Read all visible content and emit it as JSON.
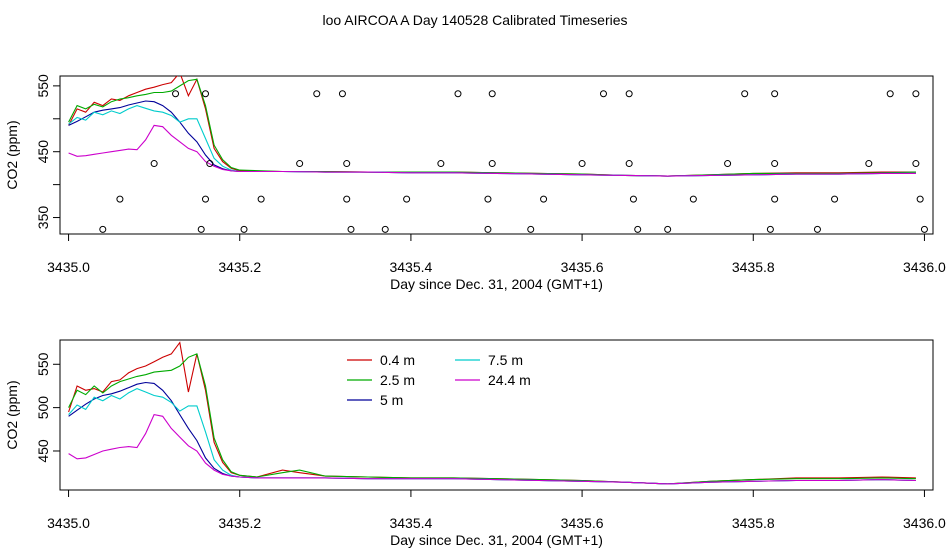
{
  "page_title": "loo AIRCOA A  Day 140528  Calibrated Timeseries",
  "chart_data": [
    {
      "type": "line+scatter",
      "xlabel": "Day since Dec. 31, 2004 (GMT+1)",
      "ylabel": "CO2 (ppm)",
      "xlim": [
        3434.99,
        3436.01
      ],
      "ylim": [
        325,
        565
      ],
      "xticks": [
        3435.0,
        3435.2,
        3435.4,
        3435.6,
        3435.8,
        3436.0
      ],
      "xtick_labels": [
        "3435.0",
        "3435.2",
        "3435.4",
        "3435.6",
        "3435.8",
        "3436.0"
      ],
      "yticks": [
        350,
        400,
        450,
        500,
        550
      ],
      "ytick_labels": [
        "350",
        "",
        "450",
        "",
        "550"
      ],
      "grid": false,
      "points": {
        "x": [
          3435.04,
          3435.06,
          3435.1,
          3435.125,
          3435.155,
          3435.16,
          3435.165,
          3435.16,
          3435.205,
          3435.225,
          3435.27,
          3435.29,
          3435.32,
          3435.325,
          3435.325,
          3435.33,
          3435.37,
          3435.395,
          3435.435,
          3435.455,
          3435.49,
          3435.49,
          3435.495,
          3435.495,
          3435.54,
          3435.555,
          3435.6,
          3435.625,
          3435.655,
          3435.655,
          3435.66,
          3435.665,
          3435.7,
          3435.73,
          3435.77,
          3435.79,
          3435.82,
          3435.825,
          3435.825,
          3435.825,
          3435.875,
          3435.895,
          3435.935,
          3435.96,
          3435.99,
          3435.99,
          3435.995,
          3436.0
        ],
        "y": [
          332,
          378,
          432,
          538,
          332,
          378,
          432,
          538,
          332,
          378,
          432,
          538,
          538,
          432,
          378,
          332,
          332,
          378,
          432,
          538,
          332,
          378,
          432,
          538,
          332,
          378,
          432,
          538,
          538,
          432,
          378,
          332,
          332,
          378,
          432,
          538,
          332,
          378,
          432,
          538,
          332,
          378,
          432,
          538,
          538,
          432,
          378,
          332
        ]
      },
      "series": [
        {
          "name": "0.4 m",
          "color": "#cc0000",
          "x": [
            3435.0,
            3435.01,
            3435.02,
            3435.03,
            3435.04,
            3435.05,
            3435.06,
            3435.07,
            3435.08,
            3435.09,
            3435.1,
            3435.11,
            3435.12,
            3435.13,
            3435.14,
            3435.15,
            3435.16,
            3435.17,
            3435.18,
            3435.19,
            3435.2,
            3435.25,
            3435.3,
            3435.35,
            3435.4,
            3435.45,
            3435.5,
            3435.55,
            3435.6,
            3435.65,
            3435.7,
            3435.75,
            3435.8,
            3435.85,
            3435.9,
            3435.95,
            3435.99
          ],
          "values": [
            490,
            515,
            510,
            525,
            520,
            530,
            528,
            535,
            540,
            545,
            548,
            552,
            555,
            570,
            535,
            560,
            515,
            455,
            435,
            425,
            421,
            420,
            420,
            419,
            419,
            419,
            418,
            417,
            416,
            414,
            413,
            415,
            417,
            418,
            418,
            419,
            419
          ]
        },
        {
          "name": "2.5 m",
          "color": "#00aa00",
          "x": [
            3435.0,
            3435.01,
            3435.02,
            3435.03,
            3435.04,
            3435.05,
            3435.06,
            3435.07,
            3435.08,
            3435.09,
            3435.1,
            3435.11,
            3435.12,
            3435.13,
            3435.14,
            3435.15,
            3435.16,
            3435.17,
            3435.18,
            3435.19,
            3435.2,
            3435.25,
            3435.3,
            3435.35,
            3435.4,
            3435.45,
            3435.5,
            3435.55,
            3435.6,
            3435.65,
            3435.7,
            3435.75,
            3435.8,
            3435.85,
            3435.9,
            3435.95,
            3435.99
          ],
          "values": [
            495,
            520,
            515,
            522,
            518,
            526,
            530,
            532,
            535,
            537,
            540,
            540,
            542,
            550,
            558,
            560,
            520,
            460,
            438,
            426,
            422,
            420,
            420,
            419,
            419,
            419,
            418,
            417,
            416,
            414,
            413,
            415,
            417,
            417,
            417,
            418,
            419
          ]
        },
        {
          "name": "5 m",
          "color": "#000099",
          "x": [
            3435.0,
            3435.01,
            3435.02,
            3435.03,
            3435.04,
            3435.05,
            3435.06,
            3435.07,
            3435.08,
            3435.09,
            3435.1,
            3435.11,
            3435.12,
            3435.13,
            3435.14,
            3435.15,
            3435.16,
            3435.17,
            3435.18,
            3435.19,
            3435.2,
            3435.25,
            3435.3,
            3435.35,
            3435.4,
            3435.45,
            3435.5,
            3435.55,
            3435.6,
            3435.65,
            3435.7,
            3435.75,
            3435.8,
            3435.85,
            3435.9,
            3435.95,
            3435.99
          ],
          "values": [
            490,
            496,
            503,
            510,
            513,
            515,
            517,
            521,
            524,
            527,
            526,
            520,
            510,
            495,
            478,
            465,
            445,
            430,
            424,
            421,
            420,
            420,
            419,
            419,
            418,
            418,
            417,
            416,
            415,
            414,
            413,
            414,
            415,
            416,
            416,
            417,
            417
          ]
        },
        {
          "name": "7.5 m",
          "color": "#00cccc",
          "x": [
            3435.0,
            3435.01,
            3435.02,
            3435.03,
            3435.04,
            3435.05,
            3435.06,
            3435.07,
            3435.08,
            3435.09,
            3435.1,
            3435.11,
            3435.12,
            3435.13,
            3435.14,
            3435.15,
            3435.16,
            3435.17,
            3435.18,
            3435.19,
            3435.2,
            3435.25,
            3435.3,
            3435.35,
            3435.4,
            3435.45,
            3435.5,
            3435.55,
            3435.6,
            3435.65,
            3435.7,
            3435.75,
            3435.8,
            3435.85,
            3435.9,
            3435.95,
            3435.99
          ],
          "values": [
            492,
            502,
            498,
            510,
            506,
            512,
            508,
            515,
            520,
            516,
            512,
            510,
            505,
            495,
            500,
            500,
            470,
            440,
            428,
            422,
            420,
            420,
            419,
            419,
            418,
            418,
            417,
            416,
            415,
            414,
            413,
            414,
            415,
            416,
            416,
            417,
            417
          ]
        },
        {
          "name": "24.4 m",
          "color": "#cc00cc",
          "x": [
            3435.0,
            3435.01,
            3435.02,
            3435.03,
            3435.04,
            3435.05,
            3435.06,
            3435.07,
            3435.08,
            3435.09,
            3435.1,
            3435.11,
            3435.12,
            3435.13,
            3435.14,
            3435.15,
            3435.16,
            3435.17,
            3435.18,
            3435.19,
            3435.2,
            3435.25,
            3435.3,
            3435.35,
            3435.4,
            3435.45,
            3435.5,
            3435.55,
            3435.6,
            3435.65,
            3435.7,
            3435.75,
            3435.8,
            3435.85,
            3435.9,
            3435.95,
            3435.99
          ],
          "values": [
            448,
            443,
            444,
            446,
            448,
            450,
            452,
            454,
            453,
            468,
            490,
            488,
            475,
            465,
            455,
            450,
            435,
            428,
            423,
            421,
            420,
            420,
            419,
            419,
            418,
            418,
            417,
            416,
            415,
            414,
            413,
            414,
            415,
            416,
            416,
            417,
            417
          ]
        }
      ]
    },
    {
      "type": "line",
      "xlabel": "Day since Dec. 31, 2004 (GMT+1)",
      "ylabel": "CO2 (ppm)",
      "xlim": [
        3434.99,
        3436.01
      ],
      "ylim": [
        405,
        578
      ],
      "xticks": [
        3435.0,
        3435.2,
        3435.4,
        3435.6,
        3435.8,
        3436.0
      ],
      "xtick_labels": [
        "3435.0",
        "3435.2",
        "3435.4",
        "3435.6",
        "3435.8",
        "3436.0"
      ],
      "yticks": [
        450,
        500,
        550
      ],
      "ytick_labels": [
        "450",
        "500",
        "550"
      ],
      "grid": false,
      "legend": {
        "placement": "top-center",
        "entries": [
          "0.4 m",
          "2.5 m",
          "5 m",
          "7.5 m",
          "24.4 m"
        ]
      },
      "series": [
        {
          "name": "0.4 m",
          "color": "#cc0000",
          "x": [
            3435.0,
            3435.01,
            3435.02,
            3435.03,
            3435.04,
            3435.05,
            3435.06,
            3435.07,
            3435.08,
            3435.09,
            3435.1,
            3435.11,
            3435.12,
            3435.13,
            3435.14,
            3435.15,
            3435.16,
            3435.17,
            3435.18,
            3435.19,
            3435.2,
            3435.22,
            3435.25,
            3435.27,
            3435.3,
            3435.35,
            3435.4,
            3435.45,
            3435.5,
            3435.55,
            3435.6,
            3435.65,
            3435.7,
            3435.75,
            3435.8,
            3435.85,
            3435.9,
            3435.95,
            3435.99
          ],
          "values": [
            495,
            525,
            520,
            522,
            518,
            530,
            532,
            540,
            545,
            548,
            553,
            558,
            562,
            575,
            518,
            562,
            520,
            460,
            437,
            425,
            422,
            420,
            428,
            425,
            421,
            420,
            419,
            419,
            418,
            417,
            416,
            414,
            412,
            415,
            417,
            419,
            419,
            420,
            419
          ]
        },
        {
          "name": "2.5 m",
          "color": "#00aa00",
          "x": [
            3435.0,
            3435.01,
            3435.02,
            3435.03,
            3435.04,
            3435.05,
            3435.06,
            3435.07,
            3435.08,
            3435.09,
            3435.1,
            3435.11,
            3435.12,
            3435.13,
            3435.14,
            3435.15,
            3435.16,
            3435.17,
            3435.18,
            3435.19,
            3435.2,
            3435.22,
            3435.25,
            3435.27,
            3435.3,
            3435.35,
            3435.4,
            3435.45,
            3435.5,
            3435.55,
            3435.6,
            3435.65,
            3435.7,
            3435.75,
            3435.8,
            3435.85,
            3435.9,
            3435.95,
            3435.99
          ],
          "values": [
            500,
            520,
            515,
            525,
            517,
            525,
            530,
            533,
            536,
            538,
            541,
            542,
            543,
            548,
            558,
            562,
            525,
            465,
            440,
            426,
            422,
            420,
            425,
            428,
            421,
            420,
            419,
            419,
            418,
            417,
            416,
            414,
            412,
            415,
            417,
            418,
            418,
            419,
            418
          ]
        },
        {
          "name": "5 m",
          "color": "#000099",
          "x": [
            3435.0,
            3435.01,
            3435.02,
            3435.03,
            3435.04,
            3435.05,
            3435.06,
            3435.07,
            3435.08,
            3435.09,
            3435.1,
            3435.11,
            3435.12,
            3435.13,
            3435.14,
            3435.15,
            3435.16,
            3435.17,
            3435.18,
            3435.19,
            3435.2,
            3435.22,
            3435.25,
            3435.27,
            3435.3,
            3435.35,
            3435.4,
            3435.45,
            3435.5,
            3435.55,
            3435.6,
            3435.65,
            3435.7,
            3435.75,
            3435.8,
            3435.85,
            3435.9,
            3435.95,
            3435.99
          ],
          "values": [
            490,
            497,
            504,
            510,
            514,
            516,
            519,
            523,
            527,
            529,
            528,
            520,
            508,
            492,
            476,
            462,
            442,
            430,
            424,
            421,
            420,
            419,
            419,
            419,
            419,
            418,
            418,
            418,
            417,
            416,
            415,
            414,
            412,
            414,
            415,
            416,
            416,
            417,
            416
          ]
        },
        {
          "name": "7.5 m",
          "color": "#00cccc",
          "x": [
            3435.0,
            3435.01,
            3435.02,
            3435.03,
            3435.04,
            3435.05,
            3435.06,
            3435.07,
            3435.08,
            3435.09,
            3435.1,
            3435.11,
            3435.12,
            3435.13,
            3435.14,
            3435.15,
            3435.16,
            3435.17,
            3435.18,
            3435.19,
            3435.2,
            3435.22,
            3435.25,
            3435.27,
            3435.3,
            3435.35,
            3435.4,
            3435.45,
            3435.5,
            3435.55,
            3435.6,
            3435.65,
            3435.7,
            3435.75,
            3435.8,
            3435.85,
            3435.9,
            3435.95,
            3435.99
          ],
          "values": [
            492,
            503,
            498,
            512,
            508,
            514,
            510,
            517,
            522,
            518,
            514,
            512,
            506,
            496,
            502,
            502,
            472,
            440,
            428,
            422,
            420,
            419,
            419,
            419,
            419,
            418,
            418,
            418,
            417,
            416,
            415,
            414,
            412,
            414,
            415,
            416,
            416,
            417,
            416
          ]
        },
        {
          "name": "24.4 m",
          "color": "#cc00cc",
          "x": [
            3435.0,
            3435.01,
            3435.02,
            3435.03,
            3435.04,
            3435.05,
            3435.06,
            3435.07,
            3435.08,
            3435.09,
            3435.1,
            3435.11,
            3435.12,
            3435.13,
            3435.14,
            3435.15,
            3435.16,
            3435.17,
            3435.18,
            3435.19,
            3435.2,
            3435.22,
            3435.25,
            3435.27,
            3435.3,
            3435.35,
            3435.4,
            3435.45,
            3435.5,
            3435.55,
            3435.6,
            3435.65,
            3435.7,
            3435.75,
            3435.8,
            3435.85,
            3435.9,
            3435.95,
            3435.99
          ],
          "values": [
            447,
            441,
            442,
            446,
            450,
            452,
            454,
            455,
            454,
            470,
            492,
            490,
            476,
            466,
            456,
            450,
            436,
            428,
            423,
            421,
            420,
            419,
            419,
            419,
            419,
            418,
            418,
            418,
            417,
            416,
            415,
            414,
            412,
            414,
            415,
            416,
            416,
            417,
            416
          ]
        }
      ]
    }
  ]
}
